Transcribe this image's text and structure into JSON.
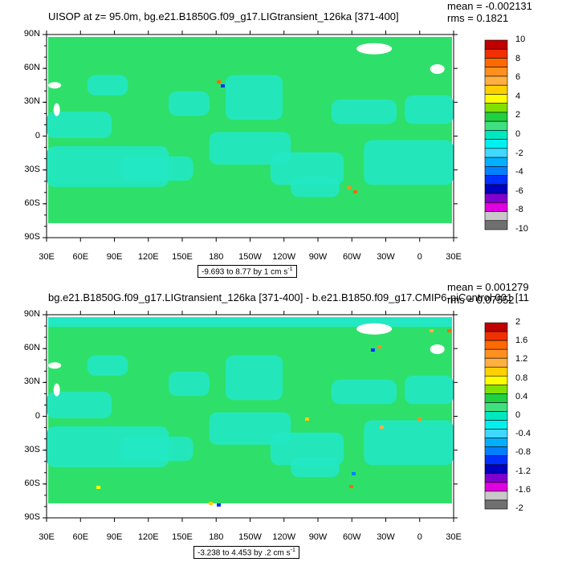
{
  "panels": [
    {
      "title": "UISOP at z=  95.0m, bg.e21.B1850G.f09_g17.LIGtransient_126ka [371-400]",
      "stats": {
        "mean": "mean = -0.002131",
        "rms": "rms = 0.1821"
      },
      "range": {
        "text": "-9.693 to 8.77 by 1 cm s",
        "exp": "-1"
      },
      "colorbar": {
        "labels": [
          "10",
          "8",
          "6",
          "4",
          "2",
          "0",
          "-2",
          "-4",
          "-6",
          "-8",
          "-10"
        ],
        "colors": [
          "#c00000",
          "#f03000",
          "#ff6a00",
          "#ff9020",
          "#ffb040",
          "#ffd000",
          "#ffff00",
          "#80e000",
          "#20d040",
          "#40e080",
          "#00e8c0",
          "#00f0f0",
          "#40d8ff",
          "#00b0ff",
          "#0080ff",
          "#0030ff",
          "#0000c0",
          "#8000d0",
          "#e000e0",
          "#c8c8c8",
          "#707070"
        ]
      }
    },
    {
      "title": "bg.e21.B1850G.f09_g17.LIGtransient_126ka [371-400] - b.e21.B1850.f09_g17.CMIP6-piControl.001 [11",
      "stats": {
        "mean": "mean = 0.001279",
        "rms": "rms = 0.07552"
      },
      "range": {
        "text": "-3.238 to 4.453 by .2 cm s",
        "exp": "-1"
      },
      "colorbar": {
        "labels": [
          "2",
          "1.6",
          "1.2",
          "0.8",
          "0.4",
          "0",
          "-0.4",
          "-0.8",
          "-1.2",
          "-1.6",
          "-2"
        ],
        "colors": [
          "#c00000",
          "#f03000",
          "#ff6a00",
          "#ff9020",
          "#ffb040",
          "#ffd000",
          "#ffff00",
          "#80e000",
          "#20d040",
          "#40e080",
          "#00e8c0",
          "#00f0f0",
          "#40d8ff",
          "#00b0ff",
          "#0080ff",
          "#0030ff",
          "#0000c0",
          "#8000d0",
          "#e000e0",
          "#c8c8c8",
          "#707070"
        ]
      }
    }
  ],
  "axes": {
    "lat_labels": [
      "90N",
      "60N",
      "30N",
      "0",
      "30S",
      "60S",
      "90S"
    ],
    "lon_labels": [
      "30E",
      "60E",
      "90E",
      "120E",
      "150E",
      "180",
      "150W",
      "120W",
      "90W",
      "60W",
      "30W",
      "0",
      "30E"
    ]
  },
  "colors": {
    "land": "#2ee06a",
    "ocean_main": "#19e06e",
    "ocean_anom": "#22e8c4",
    "missing": "#ffffff"
  },
  "chart_data": [
    {
      "type": "heatmap",
      "title": "UISOP at z=  95.0m, bg.e21.B1850G.f09_g17.LIGtransient_126ka [371-400]",
      "x_range": [
        "30E",
        "30E"
      ],
      "y_range": [
        "90S",
        "90N"
      ],
      "mean": -0.002131,
      "rms": 0.1821,
      "contour_min": -9.693,
      "contour_max": 8.77,
      "contour_interval": 1,
      "units": "cm s-1",
      "colorbar_levels": [
        -10,
        -8,
        -6,
        -4,
        -2,
        0,
        2,
        4,
        6,
        8,
        10
      ]
    },
    {
      "type": "heatmap",
      "title": "bg.e21.B1850G.f09_g17.LIGtransient_126ka [371-400] - b.e21.B1850.f09_g17.CMIP6-piControl.001 [11",
      "x_range": [
        "30E",
        "30E"
      ],
      "y_range": [
        "90S",
        "90N"
      ],
      "mean": 0.001279,
      "rms": 0.07552,
      "contour_min": -3.238,
      "contour_max": 4.453,
      "contour_interval": 0.2,
      "units": "cm s-1",
      "colorbar_levels": [
        -2,
        -1.6,
        -1.2,
        -0.8,
        -0.4,
        0,
        0.4,
        0.8,
        1.2,
        1.6,
        2
      ]
    }
  ]
}
